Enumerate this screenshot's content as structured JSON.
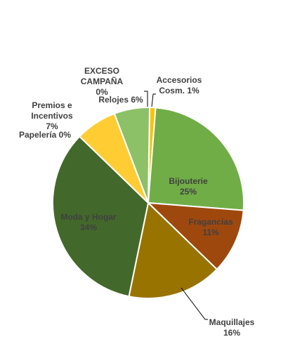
{
  "chart_data": {
    "type": "pie",
    "slices": [
      {
        "key": "accesorios",
        "label": "Accesorios Cosm. 1%",
        "lines": [
          "Accesorios",
          "Cosm. 1%"
        ],
        "value": 1,
        "color": "#ffc000"
      },
      {
        "key": "bijouterie",
        "label": "Bijouterie 25%",
        "lines": [
          "Bijouterie",
          "25%"
        ],
        "value": 25,
        "color": "#70ad47"
      },
      {
        "key": "fragancias",
        "label": "Fragancias 11%",
        "lines": [
          "Fragancias",
          "11%"
        ],
        "value": 11,
        "color": "#9e480e"
      },
      {
        "key": "maquillajes",
        "label": "Maquillajes 16%",
        "lines": [
          "Maquillajes",
          "16%"
        ],
        "value": 16,
        "color": "#997300"
      },
      {
        "key": "moda-y-hogar",
        "label": "Moda y Hogar 34%",
        "lines": [
          "Moda y Hogar",
          "34%"
        ],
        "value": 34,
        "color": "#43682b"
      },
      {
        "key": "papeleria",
        "label": "Papelería 0%",
        "lines": [
          "Papelería 0%"
        ],
        "value": 0,
        "color": "#264478"
      },
      {
        "key": "premios",
        "label": "Premios e Incentivos 7%",
        "lines": [
          "Premios e",
          "Incentivos",
          "7%"
        ],
        "value": 7,
        "color": "#ffcd33"
      },
      {
        "key": "relojes",
        "label": "Relojes 6%",
        "lines": [
          "Relojes 6%"
        ],
        "value": 6,
        "color": "#8cc168"
      },
      {
        "key": "exceso-campana",
        "label": "EXCESO CAMPAÑA 0%",
        "lines": [
          "EXCESO",
          "CAMPAÑA",
          "0%"
        ],
        "value": 0,
        "color": "#ffe699"
      }
    ],
    "label_color": "#404040",
    "border_color": "#ffffff"
  }
}
